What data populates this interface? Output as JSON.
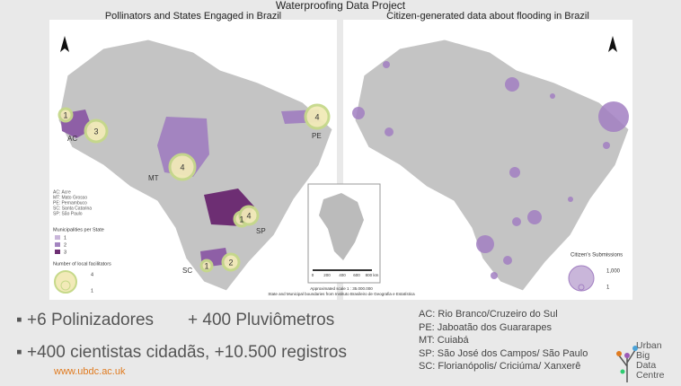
{
  "title": "Waterproofing Data Project",
  "left_map": {
    "title": "Pollinators and States Engaged in Brazil",
    "state_labels": [
      "AC",
      "MT",
      "PE",
      "SC",
      "SP"
    ],
    "circle_labels": [
      "1",
      "3",
      "4",
      "4",
      "1",
      "4",
      "1",
      "2"
    ],
    "abbreviations": [
      "AC: Acre",
      "MT: Mato Grosso",
      "PE: Pernambuco",
      "SC: Santa Catarina",
      "SP: São Paulo"
    ],
    "legend_municipalities": {
      "title": "Municipalities per State",
      "items": [
        "1",
        "2",
        "3"
      ]
    },
    "legend_facilitators": {
      "title": "Number of local facilitators",
      "items": [
        "4",
        "1"
      ]
    }
  },
  "inset": {
    "scale_labels": [
      "0",
      "200",
      "400",
      "600",
      "800 km"
    ],
    "scale_note": "Approximated scale 1 : 35.000.000",
    "source": "State and Municipal boundaries from Instituto Brasileiro de Geografia e Estatística"
  },
  "right_map": {
    "title": "Citizen-generated data about flooding in Brazil",
    "legend": {
      "title": "Citizen's Submissions",
      "items": [
        "1,000",
        "1"
      ]
    }
  },
  "bullets": [
    [
      "+6 Polinizadores",
      "+ 400 Pluviômetros"
    ],
    [
      "+400 cientistas cidadãs, +10.500 registros"
    ]
  ],
  "locations": [
    "AC: Rio Branco/Cruzeiro do Sul",
    "PE: Jaboatão dos Guararapes",
    "MT: Cuiabá",
    "SP: São José dos Campos/ São Paulo",
    "SC: Florianópolis/ Criciúma/ Xanxerê"
  ],
  "footer": {
    "url": "www.ubdc.ac.uk",
    "logo": [
      "Urban",
      "Big",
      "Data",
      "Centre"
    ]
  }
}
